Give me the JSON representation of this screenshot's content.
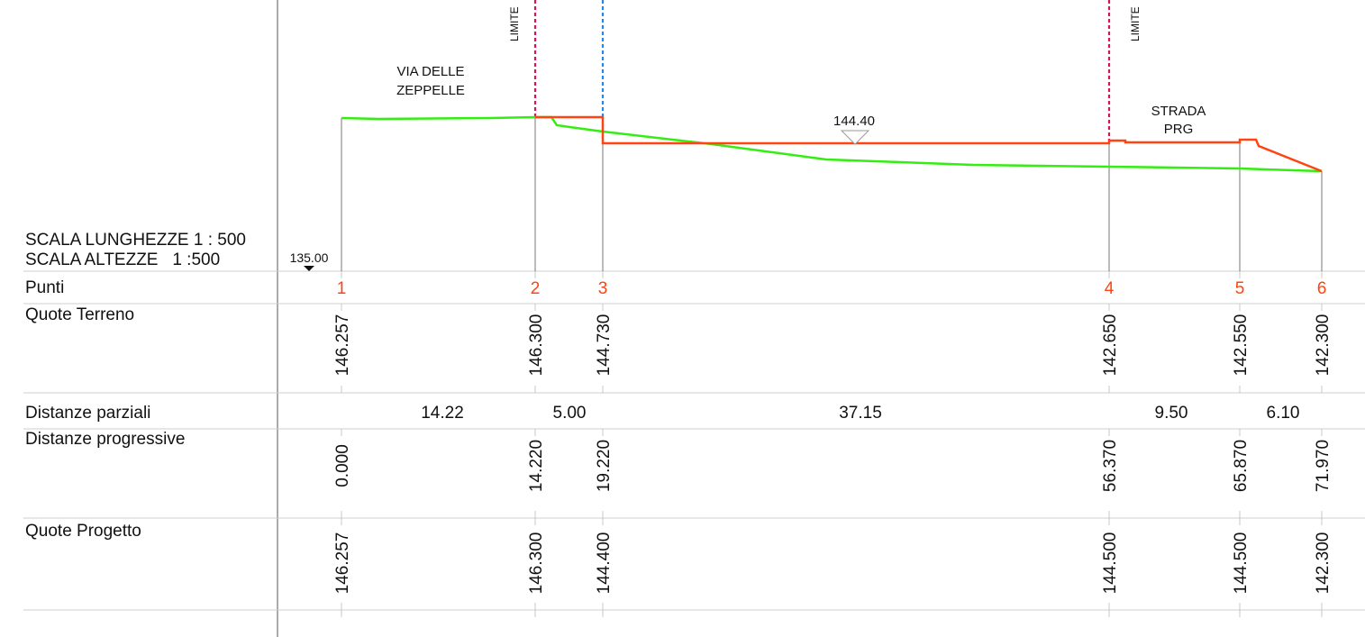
{
  "scale": {
    "lengths": "SCALA LUNGHEZZE 1 : 500",
    "heights": "SCALA ALTEZZE   1 :500"
  },
  "datum_label": "135.00",
  "rows": {
    "punti": "Punti",
    "quote_terreno": "Quote Terreno",
    "distanze_parziali": "Distanze parziali",
    "distanze_progressive": "Distanze progressive",
    "quote_progetto": "Quote Progetto"
  },
  "points": [
    {
      "id": "1",
      "terreno": "146.257",
      "progressiva": "0.000",
      "progetto": "146.257"
    },
    {
      "id": "2",
      "terreno": "146.300",
      "progressiva": "14.220",
      "progetto": "146.300"
    },
    {
      "id": "3",
      "terreno": "144.730",
      "progressiva": "19.220",
      "progetto": "144.400"
    },
    {
      "id": "4",
      "terreno": "142.650",
      "progressiva": "56.370",
      "progetto": "144.500"
    },
    {
      "id": "5",
      "terreno": "142.550",
      "progressiva": "65.870",
      "progetto": "144.500"
    },
    {
      "id": "6",
      "terreno": "142.300",
      "progressiva": "71.970",
      "progetto": "142.300"
    }
  ],
  "partial_distances": [
    "14.22",
    "5.00",
    "37.15",
    "9.50",
    "6.10"
  ],
  "annotations": {
    "via_line1": "VIA DELLE",
    "via_line2": "ZEPPELLE",
    "strada_line1": "STRADA",
    "strada_line2": "PRG",
    "limite_left": "LIMITE",
    "limite_right": "LIMITE",
    "level_mark": "144.40"
  },
  "colors": {
    "terrain": "#33ee11",
    "project": "#ff4411",
    "limit_red": "#dd1155",
    "limit_blue": "#2288ee",
    "point_label": "#ff4411",
    "grid": "#cccccc"
  }
}
